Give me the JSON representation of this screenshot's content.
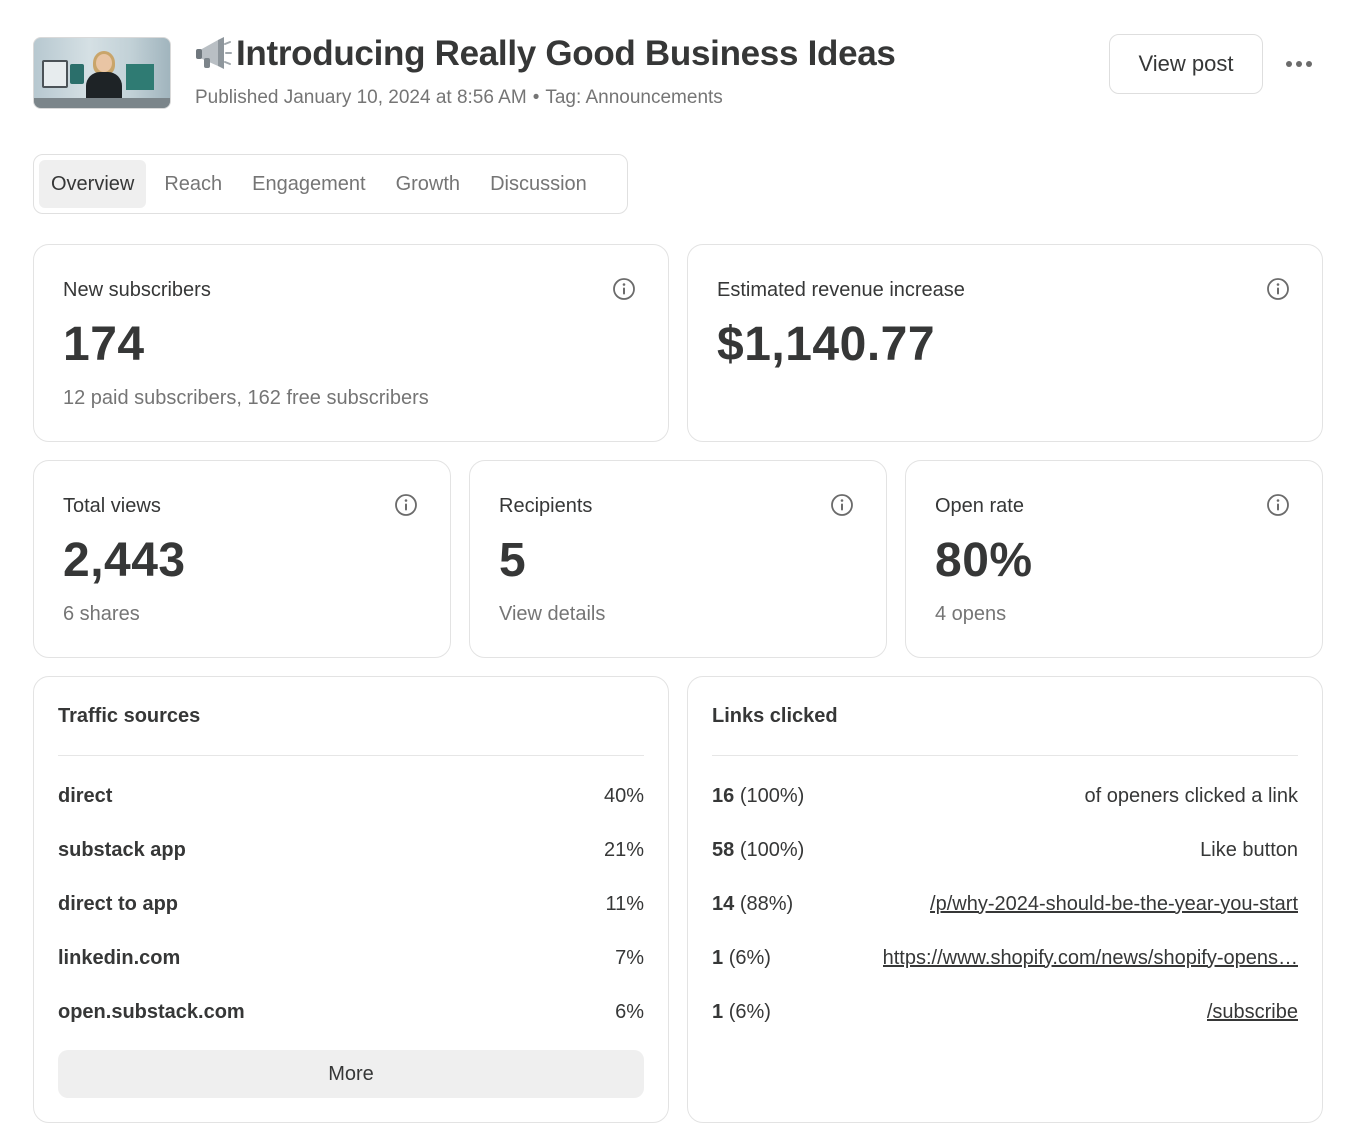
{
  "header": {
    "title": "Introducing Really Good Business Ideas",
    "published": "Published January 10, 2024 at 8:56 AM",
    "separator": "•",
    "tag": "Tag: Announcements",
    "view_post_label": "View post",
    "icon": "megaphone-icon"
  },
  "tabs": [
    {
      "label": "Overview",
      "active": true
    },
    {
      "label": "Reach",
      "active": false
    },
    {
      "label": "Engagement",
      "active": false
    },
    {
      "label": "Growth",
      "active": false
    },
    {
      "label": "Discussion",
      "active": false
    }
  ],
  "stats": {
    "new_subscribers": {
      "label": "New subscribers",
      "value": "174",
      "sub": "12 paid subscribers, 162 free subscribers"
    },
    "revenue": {
      "label": "Estimated revenue increase",
      "value": "$1,140.77"
    },
    "total_views": {
      "label": "Total views",
      "value": "2,443",
      "sub": "6 shares"
    },
    "recipients": {
      "label": "Recipients",
      "value": "5",
      "sub": "View details"
    },
    "open_rate": {
      "label": "Open rate",
      "value": "80%",
      "sub": "4 opens"
    }
  },
  "traffic": {
    "title": "Traffic sources",
    "rows": [
      {
        "source": "direct",
        "pct": "40%"
      },
      {
        "source": "substack app",
        "pct": "21%"
      },
      {
        "source": "direct to app",
        "pct": "11%"
      },
      {
        "source": "linkedin.com",
        "pct": "7%"
      },
      {
        "source": "open.substack.com",
        "pct": "6%"
      }
    ],
    "more_label": "More"
  },
  "links": {
    "title": "Links clicked",
    "rows": [
      {
        "count": "16",
        "pct": "(100%)",
        "target": "of openers clicked a link",
        "is_link": false
      },
      {
        "count": "58",
        "pct": "(100%)",
        "target": "Like button",
        "is_link": false
      },
      {
        "count": "14",
        "pct": "(88%)",
        "target": "/p/why-2024-should-be-the-year-you-start",
        "is_link": true
      },
      {
        "count": "1",
        "pct": "(6%)",
        "target": "https://www.shopify.com/news/shopify-opens…",
        "is_link": true
      },
      {
        "count": "1",
        "pct": "(6%)",
        "target": "/subscribe",
        "is_link": true
      }
    ]
  }
}
